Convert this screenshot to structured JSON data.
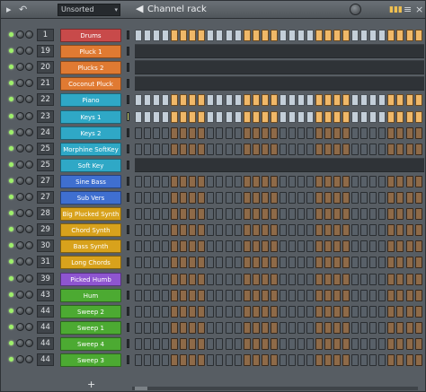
{
  "toolbar": {
    "filter_value": "Unsorted",
    "title": "Channel rack"
  },
  "colors": {
    "red": "#c84a4a",
    "orange": "#e07a32",
    "cyan": "#2fa8c6",
    "blue": "#3f6fd0",
    "yellow": "#d8a21c",
    "purple": "#8e55d0",
    "green": "#4caa32"
  },
  "channels": [
    {
      "num": "1",
      "name": "Drums",
      "color": "red",
      "mode": "steps"
    },
    {
      "num": "19",
      "name": "Pluck 1",
      "color": "orange",
      "mode": "piano"
    },
    {
      "num": "20",
      "name": "Plucks 2",
      "color": "orange",
      "mode": "piano"
    },
    {
      "num": "21",
      "name": "Coconut Pluck",
      "color": "orange",
      "mode": "piano"
    },
    {
      "num": "22",
      "name": "Piano",
      "color": "cyan",
      "mode": "steps"
    },
    {
      "num": "23",
      "name": "Keys 1",
      "color": "cyan",
      "mode": "steps"
    },
    {
      "num": "24",
      "name": "Keys 2",
      "color": "cyan",
      "mode": "steps"
    },
    {
      "num": "25",
      "name": "Morphine SoftKey",
      "color": "cyan",
      "mode": "steps"
    },
    {
      "num": "25",
      "name": "Soft Key",
      "color": "cyan",
      "mode": "piano"
    },
    {
      "num": "27",
      "name": "Sine Bass",
      "color": "blue",
      "mode": "steps"
    },
    {
      "num": "27",
      "name": "Sub Vers",
      "color": "blue",
      "mode": "steps"
    },
    {
      "num": "28",
      "name": "Big Plucked Synth",
      "color": "yellow",
      "mode": "steps"
    },
    {
      "num": "29",
      "name": "Chord Synth",
      "color": "yellow",
      "mode": "steps"
    },
    {
      "num": "30",
      "name": "Bass Synth",
      "color": "yellow",
      "mode": "steps"
    },
    {
      "num": "31",
      "name": "Long Chords",
      "color": "yellow",
      "mode": "steps"
    },
    {
      "num": "39",
      "name": "Picked Humb",
      "color": "purple",
      "mode": "steps"
    },
    {
      "num": "43",
      "name": "Hum",
      "color": "green",
      "mode": "steps"
    },
    {
      "num": "44",
      "name": "Sweep 2",
      "color": "green",
      "mode": "steps"
    },
    {
      "num": "44",
      "name": "Sweep 1",
      "color": "green",
      "mode": "steps"
    },
    {
      "num": "44",
      "name": "Sweep 4",
      "color": "green",
      "mode": "steps"
    },
    {
      "num": "44",
      "name": "Sweep 3",
      "color": "green",
      "mode": "steps"
    }
  ],
  "footer": {
    "add_label": "+"
  }
}
